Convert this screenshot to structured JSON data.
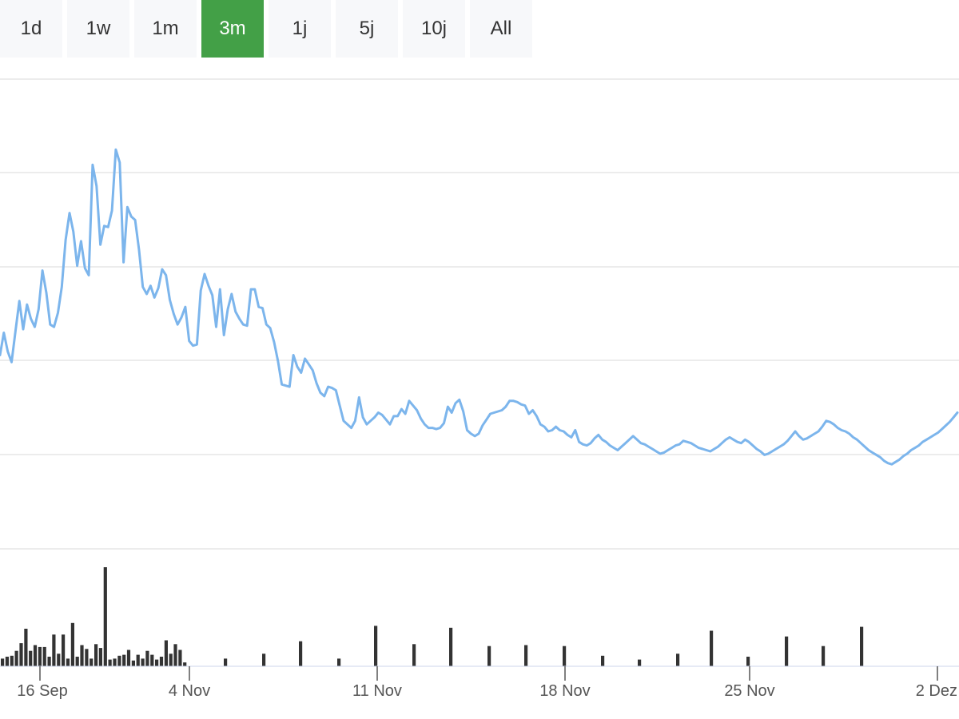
{
  "range_selector": {
    "buttons": [
      {
        "label": "1d",
        "active": false
      },
      {
        "label": "1w",
        "active": false
      },
      {
        "label": "1m",
        "active": false
      },
      {
        "label": "3m",
        "active": true
      },
      {
        "label": "1j",
        "active": false
      },
      {
        "label": "5j",
        "active": false
      },
      {
        "label": "10j",
        "active": false
      },
      {
        "label": "All",
        "active": false
      }
    ],
    "active_color": "#43a047"
  },
  "chart_data": {
    "type": "line",
    "line_color": "#7cb5ec",
    "volume_color": "#333333",
    "grid": true,
    "x_tick_labels": [
      "16 Sep",
      "4 Nov",
      "11 Nov",
      "18 Nov",
      "25 Nov",
      "2 Dez"
    ],
    "series": [
      {
        "type": "line",
        "values": [
          36.5,
          38.4,
          36.8,
          35.9,
          38.5,
          41.1,
          38.7,
          40.8,
          39.6,
          38.9,
          40.4,
          43.7,
          41.8,
          39.1,
          38.9,
          40.1,
          42.3,
          46.3,
          48.6,
          47.0,
          44.1,
          46.2,
          43.9,
          43.3,
          52.7,
          50.9,
          45.9,
          47.5,
          47.4,
          48.8,
          54.0,
          52.9,
          44.4,
          49.1,
          48.3,
          48.0,
          45.5,
          42.3,
          41.7,
          42.4,
          41.4,
          42.2,
          43.8,
          43.3,
          41.2,
          40.0,
          39.1,
          39.7,
          40.6,
          37.7,
          37.3,
          37.4,
          42.0,
          43.4,
          42.4,
          41.6,
          38.9,
          42.1,
          38.2,
          40.4,
          41.7,
          40.2,
          39.6,
          39.1,
          39.0,
          42.1,
          42.1,
          40.6,
          40.5,
          39.1,
          38.8,
          37.6,
          36.0,
          34.0,
          33.9,
          33.8,
          36.5,
          35.5,
          35.0,
          36.2,
          35.7,
          35.2,
          34.1,
          33.3,
          33.0,
          33.8,
          33.7,
          33.5,
          32.2,
          30.9,
          30.6,
          30.3,
          30.9,
          32.9,
          31.2,
          30.6,
          30.9,
          31.2,
          31.6,
          31.4,
          31.0,
          30.6,
          31.3,
          31.3,
          31.9,
          31.5,
          32.6,
          32.2,
          31.8,
          31.1,
          30.6,
          30.3,
          30.3,
          30.2,
          30.3,
          30.7,
          32.1,
          31.6,
          32.4,
          32.7,
          31.7,
          30.1,
          29.8,
          29.6,
          29.8,
          30.5,
          31.0,
          31.5,
          31.6,
          31.7,
          31.8,
          32.1,
          32.6,
          32.6,
          32.5,
          32.3,
          32.2,
          31.5,
          31.8,
          31.3,
          30.6,
          30.4,
          30.0,
          30.1,
          30.4,
          30.1,
          30.0,
          29.7,
          29.5,
          30.1,
          29.1,
          28.9,
          28.8,
          29.0,
          29.4,
          29.7,
          29.3,
          29.1,
          28.8,
          28.6,
          28.4,
          28.7,
          29.0,
          29.3,
          29.6,
          29.3,
          29.0,
          28.9,
          28.7,
          28.5,
          28.3,
          28.1,
          28.2,
          28.4,
          28.6,
          28.8,
          28.9,
          29.2,
          29.1,
          29.0,
          28.8,
          28.6,
          28.5,
          28.4,
          28.3,
          28.5,
          28.7,
          29.0,
          29.3,
          29.5,
          29.3,
          29.1,
          29.0,
          29.3,
          29.1,
          28.8,
          28.5,
          28.3,
          28.0,
          28.1,
          28.3,
          28.5,
          28.7,
          28.9,
          29.2,
          29.6,
          30.0,
          29.6,
          29.3,
          29.4,
          29.6,
          29.8,
          30.0,
          30.4,
          30.9,
          30.8,
          30.6,
          30.3,
          30.1,
          30.0,
          29.8,
          29.5,
          29.3,
          29.0,
          28.7,
          28.4,
          28.2,
          28.0,
          27.8,
          27.5,
          27.3,
          27.2,
          27.4,
          27.6,
          27.9,
          28.1,
          28.4,
          28.6,
          28.8,
          29.1,
          29.3,
          29.5,
          29.7,
          29.9,
          30.2,
          30.5,
          30.8,
          31.2,
          31.6
        ]
      },
      {
        "type": "column",
        "name": "volume",
        "values": [
          0.8,
          1.0,
          1.1,
          1.6,
          2.4,
          3.9,
          1.6,
          2.2,
          2.0,
          2.0,
          1.0,
          3.3,
          1.3,
          3.3,
          0.8,
          4.5,
          1.0,
          2.2,
          1.8,
          0.8,
          2.3,
          1.9,
          10.3,
          0.7,
          0.8,
          1.1,
          1.2,
          1.7,
          0.6,
          1.2,
          0.8,
          1.6,
          1.2,
          0.7,
          1.0,
          2.7,
          1.3,
          2.3,
          1.7,
          0.4,
          0.8,
          1.3,
          2.6,
          0.8,
          4.2,
          2.3,
          4.0,
          2.1,
          2.2,
          2.1,
          1.1,
          0.7,
          1.3,
          3.7,
          1.0,
          3.1,
          2.1,
          4.1
        ]
      }
    ]
  }
}
